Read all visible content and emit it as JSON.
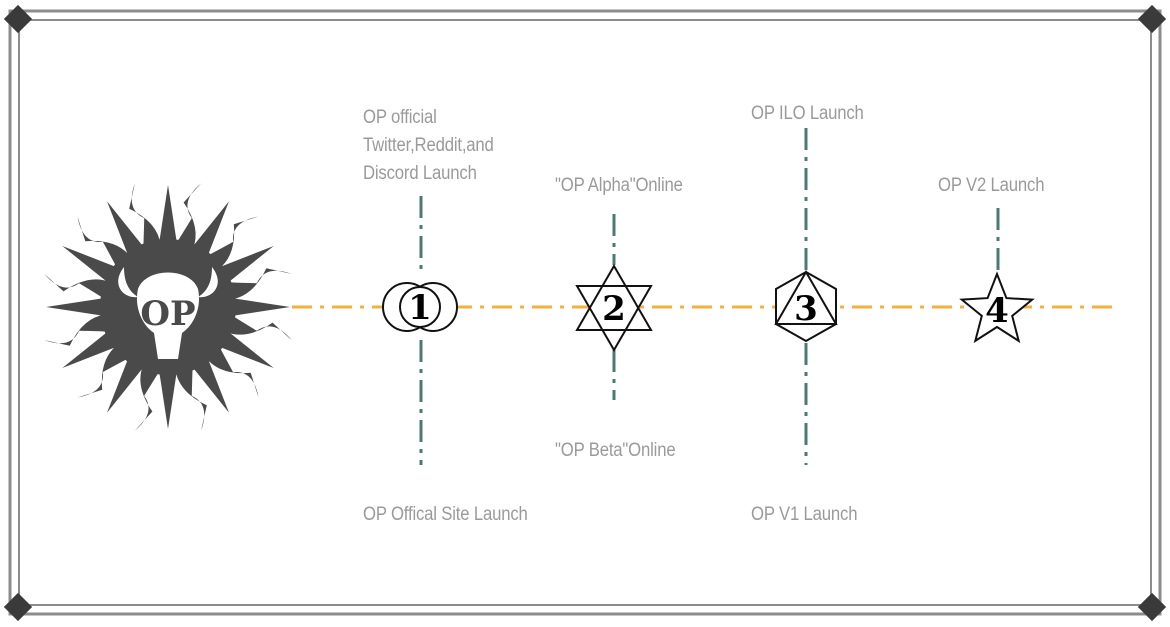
{
  "colors": {
    "frame": "#8c8c8c",
    "corner": "#3a3a3a",
    "timeline": "#f2b13c",
    "stem": "#4b7a74",
    "label": "#9a9a9a",
    "logo": "#4a4a4a"
  },
  "logo": {
    "text": "OP"
  },
  "milestones": [
    {
      "number": "1",
      "shape": "double-circle",
      "top_label": "OP official\nTwitter,Reddit,and\nDiscord Launch",
      "bottom_label": "OP Offical Site Launch"
    },
    {
      "number": "2",
      "shape": "hexagram",
      "top_label": "\"OP Alpha\"Online",
      "bottom_label": "\"OP Beta\"Online"
    },
    {
      "number": "3",
      "shape": "hexagon-triangle",
      "top_label": "OP ILO Launch",
      "bottom_label": "OP V1 Launch"
    },
    {
      "number": "4",
      "shape": "star",
      "top_label": "OP V2 Launch",
      "bottom_label": ""
    }
  ]
}
